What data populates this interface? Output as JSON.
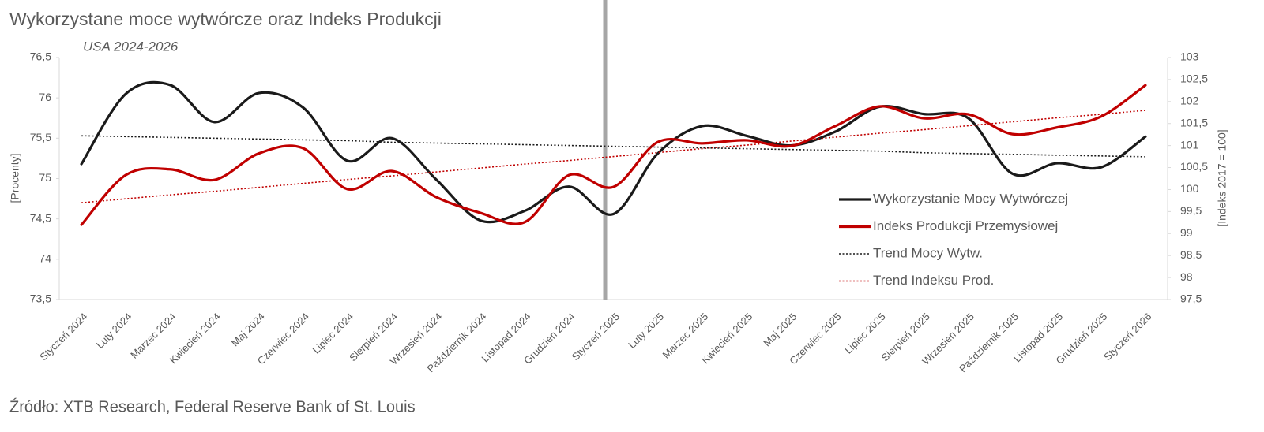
{
  "chart_data": {
    "type": "line",
    "title": "Wykorzystane moce wytwórcze oraz Indeks Produkcji",
    "subtitle": "USA 2024-2026",
    "y_label": "[Procenty]",
    "y2_label": "[Indeks 2017 = 100]",
    "source": "Źródło: XTB Research, Federal Reserve Bank of St. Louis",
    "categories": [
      "Styczeń 2024",
      "Luty 2024",
      "Marzec 2024",
      "Kwiecień 2024",
      "Maj 2024",
      "Czerwiec 2024",
      "Lipiec 2024",
      "Sierpień 2024",
      "Wrzesień 2024",
      "Październik 2024",
      "Listopad 2024",
      "Grudzień 2024",
      "Styczeń 2025",
      "Luty 2025",
      "Marzec 2025",
      "Kwiecień 2025",
      "Maj 2025",
      "Czerwiec 2025",
      "Lipiec 2025",
      "Sierpień 2025",
      "Wrzesień 2025",
      "Październik 2025",
      "Listopad 2025",
      "Grudzień 2025",
      "Styczeń 2026"
    ],
    "series": [
      {
        "name": "Wykorzystanie Mocy Wytwórczej",
        "color": "#1a1a1a",
        "style": "solid",
        "smooth": true,
        "values": [
          75.18,
          76.05,
          76.16,
          75.7,
          76.06,
          75.88,
          75.22,
          75.5,
          74.99,
          74.48,
          74.6,
          74.9,
          74.56,
          75.31,
          75.65,
          75.53,
          75.41,
          75.58,
          75.89,
          75.8,
          75.75,
          75.06,
          75.19,
          75.14,
          75.52
        ]
      },
      {
        "name": "Indeks Produkcji Przemysłowej",
        "color": "#c00000",
        "style": "solid",
        "smooth": true,
        "axis": "y2",
        "values": [
          99.2,
          100.33,
          100.46,
          100.22,
          100.82,
          100.94,
          100.01,
          100.42,
          99.83,
          99.47,
          99.26,
          100.33,
          100.06,
          101.08,
          101.05,
          101.12,
          100.99,
          101.44,
          101.89,
          101.62,
          101.71,
          101.26,
          101.41,
          101.66,
          102.37
        ]
      },
      {
        "name": "Trend Mocy Wytw.",
        "color": "#1a1a1a",
        "style": "dotted",
        "smooth": false,
        "values": [
          75.53,
          75.52,
          75.51,
          75.5,
          75.49,
          75.48,
          75.47,
          75.45,
          75.44,
          75.43,
          75.42,
          75.41,
          75.4,
          75.39,
          75.38,
          75.37,
          75.36,
          75.35,
          75.34,
          75.32,
          75.31,
          75.3,
          75.29,
          75.28,
          75.27
        ]
      },
      {
        "name": "Trend Indeksu Prod.",
        "color": "#c00000",
        "style": "dotted",
        "smooth": false,
        "axis": "y2",
        "values": [
          99.7,
          99.79,
          99.88,
          99.96,
          100.05,
          100.14,
          100.23,
          100.31,
          100.4,
          100.49,
          100.58,
          100.66,
          100.75,
          100.84,
          100.93,
          101.01,
          101.1,
          101.19,
          101.28,
          101.36,
          101.45,
          101.54,
          101.63,
          101.71,
          101.8
        ]
      }
    ],
    "ylim": [
      73.5,
      76.5
    ],
    "yticks": [
      {
        "value": 73.5,
        "label": "73,5"
      },
      74,
      {
        "value": 74.5,
        "label": "74,5"
      },
      75,
      {
        "value": 75.5,
        "label": "75,5"
      },
      76,
      {
        "value": 76.5,
        "label": "76,5"
      }
    ],
    "y2lim": [
      97.5,
      103
    ],
    "y2ticks": [
      {
        "value": 97.5,
        "label": "97,5"
      },
      98,
      {
        "value": 98.5,
        "label": "98,5"
      },
      99,
      {
        "value": 99.5,
        "label": "99,5"
      },
      100,
      {
        "value": 100.5,
        "label": "100,5"
      },
      101,
      {
        "value": 101.5,
        "label": "101,5"
      },
      102,
      {
        "value": 102.5,
        "label": "102,5"
      },
      103
    ],
    "legend": "right"
  }
}
